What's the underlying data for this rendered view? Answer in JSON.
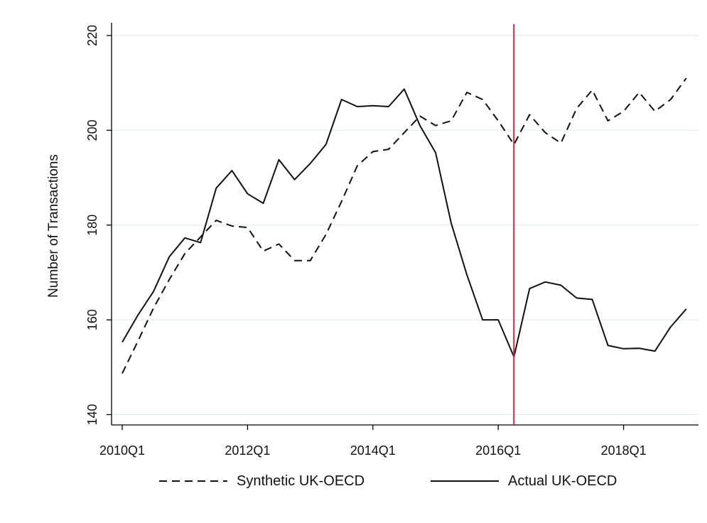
{
  "chart_data": {
    "type": "line",
    "title": "",
    "xlabel": "",
    "ylabel": "Number of Transactions",
    "ylim": [
      138,
      222
    ],
    "yticks": [
      140,
      160,
      180,
      200,
      220
    ],
    "grid": true,
    "legend_position": "bottom",
    "x_tick_labels": [
      "2010Q1",
      "2012Q1",
      "2014Q1",
      "2016Q1",
      "2018Q1"
    ],
    "x": [
      "2010Q1",
      "2010Q2",
      "2010Q3",
      "2010Q4",
      "2011Q1",
      "2011Q2",
      "2011Q3",
      "2011Q4",
      "2012Q1",
      "2012Q2",
      "2012Q3",
      "2012Q4",
      "2013Q1",
      "2013Q2",
      "2013Q3",
      "2013Q4",
      "2014Q1",
      "2014Q2",
      "2014Q3",
      "2014Q4",
      "2015Q1",
      "2015Q2",
      "2015Q3",
      "2015Q4",
      "2016Q1",
      "2016Q2",
      "2016Q3",
      "2016Q4",
      "2017Q1",
      "2017Q2",
      "2017Q3",
      "2017Q4",
      "2018Q1",
      "2018Q2",
      "2018Q3",
      "2018Q4",
      "2019Q1"
    ],
    "series": [
      {
        "name": "Synthetic UK-OECD",
        "style": "dashed",
        "color": "#111111",
        "values": [
          148.7,
          155.5,
          162.5,
          168.5,
          174,
          177.5,
          181,
          179.8,
          179.5,
          174.5,
          176,
          172.5,
          172.5,
          178,
          185,
          192.5,
          195.5,
          196,
          199.5,
          203,
          201,
          202,
          208,
          206.5,
          202,
          197,
          203.3,
          199.5,
          197.3,
          204.6,
          208.5,
          202,
          204,
          208,
          204,
          206.5,
          211
        ]
      },
      {
        "name": "Actual UK-OECD",
        "style": "solid",
        "color": "#111111",
        "values": [
          155.3,
          161,
          166,
          173.3,
          177.3,
          176.3,
          187.8,
          191.5,
          186.6,
          184.6,
          193.8,
          189.6,
          193,
          197,
          206.5,
          205,
          205.2,
          205,
          208.7,
          201,
          195.3,
          180.4,
          169.5,
          160,
          160,
          152.2,
          166.6,
          168,
          167.3,
          164.6,
          164.3,
          154.6,
          153.9,
          154,
          153.4,
          158.5,
          162.3
        ]
      }
    ],
    "vertical_line": {
      "x": "2016Q2",
      "color": "#c8264f"
    }
  }
}
